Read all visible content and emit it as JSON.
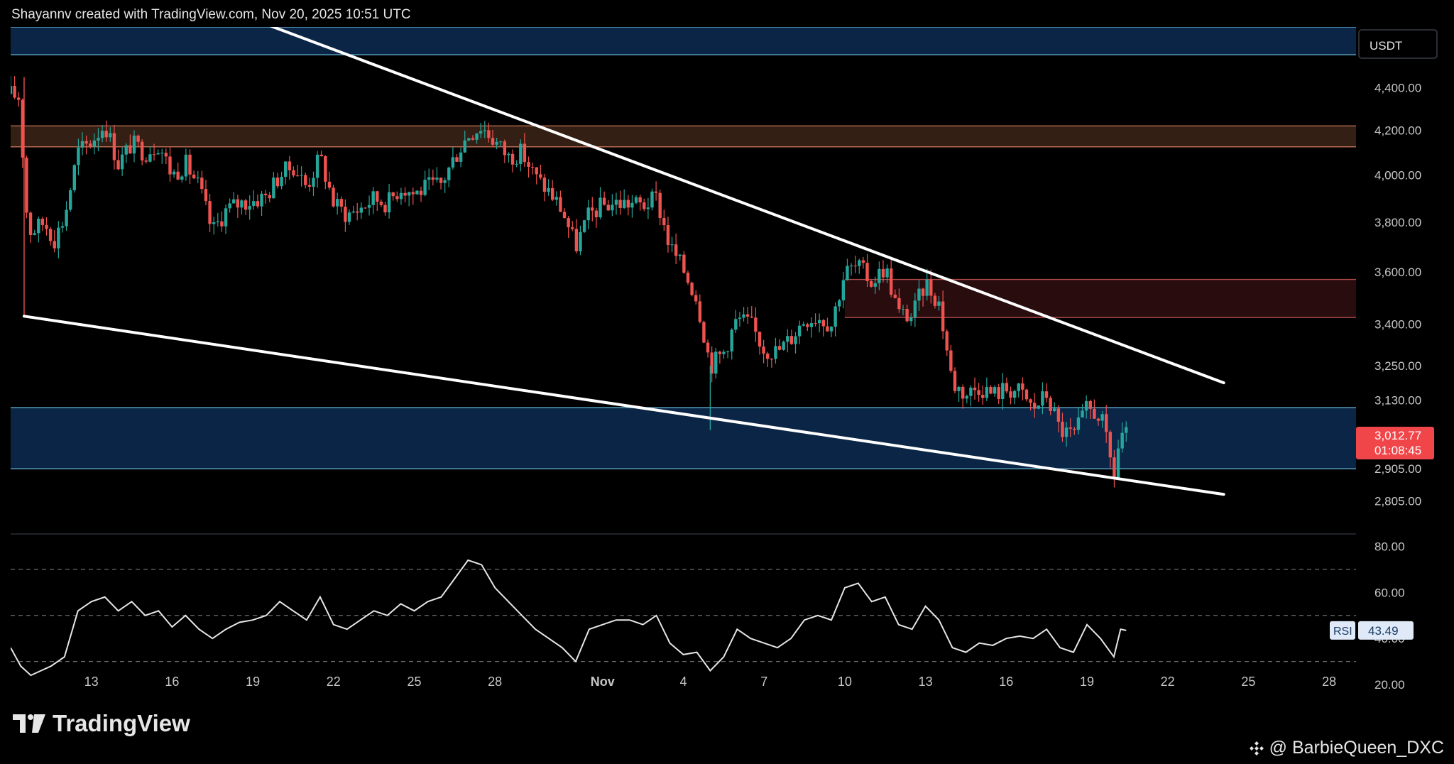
{
  "header": {
    "attribution": "Shayannv created with TradingView.com, Nov 20, 2025 10:51 UTC"
  },
  "brand": {
    "name": "TradingView"
  },
  "watermark": {
    "text": "@ BarbieQueen_DXC"
  },
  "colors": {
    "background": "#000000",
    "up": "#26a69a",
    "down": "#ef5350",
    "blue_zone": "#0d2b52",
    "blue_zone_line": "#5fa6c8",
    "orange_zone": "#3a2216",
    "red_zone": "#2c0d10",
    "trendline": "#ffffff",
    "rsi_line": "#e6e6e6"
  },
  "chart_data": {
    "type": "candlestick",
    "currency": "USDT",
    "y_scale": "log",
    "ylim": [
      2710,
      4700
    ],
    "y_ticks": [
      "4,400.00",
      "4,200.00",
      "4,000.00",
      "3,800.00",
      "3,600.00",
      "3,400.00",
      "3,250.00",
      "3,130.00",
      "2,905.00",
      "2,805.00"
    ],
    "y_tick_values": [
      4400,
      4200,
      4000,
      3800,
      3600,
      3400,
      3250,
      3130,
      2905,
      2805
    ],
    "x_range": [
      "2025-10-10",
      "2025-11-29"
    ],
    "x_ticks": [
      {
        "label": "13",
        "date": "2025-10-13"
      },
      {
        "label": "16",
        "date": "2025-10-16"
      },
      {
        "label": "19",
        "date": "2025-10-19"
      },
      {
        "label": "22",
        "date": "2025-10-22"
      },
      {
        "label": "25",
        "date": "2025-10-25"
      },
      {
        "label": "28",
        "date": "2025-10-28"
      },
      {
        "label": "Nov",
        "date": "2025-11-01"
      },
      {
        "label": "4",
        "date": "2025-11-04"
      },
      {
        "label": "7",
        "date": "2025-11-07"
      },
      {
        "label": "10",
        "date": "2025-11-10"
      },
      {
        "label": "13",
        "date": "2025-11-13"
      },
      {
        "label": "16",
        "date": "2025-11-16"
      },
      {
        "label": "19",
        "date": "2025-11-19"
      },
      {
        "label": "22",
        "date": "2025-11-22"
      },
      {
        "label": "25",
        "date": "2025-11-25"
      },
      {
        "label": "28",
        "date": "2025-11-28"
      }
    ],
    "last_price": "3,012.77",
    "countdown": "01:08:45",
    "zones": [
      {
        "name": "top-blue-zone",
        "color": "blue",
        "low": 4560,
        "high": 4720
      },
      {
        "name": "supply-zone",
        "color": "orange",
        "low": 4125,
        "high": 4220
      },
      {
        "name": "resistance-zone",
        "color": "red",
        "low": 3425,
        "high": 3570
      },
      {
        "name": "support-zone",
        "color": "blue",
        "low": 2905,
        "high": 3105
      }
    ],
    "trendlines": [
      {
        "name": "upper-trendline",
        "from": {
          "date": "2025-10-19T09:00",
          "price": 4720
        },
        "to": {
          "date": "2025-11-24T02:00",
          "price": 3190
        }
      },
      {
        "name": "lower-trendline",
        "from": {
          "date": "2025-10-10T12:00",
          "price": 3430
        },
        "to": {
          "date": "2025-11-24T02:00",
          "price": 2825
        }
      }
    ],
    "price_path": [
      [
        "2025-10-10T00:00",
        4370
      ],
      [
        "2025-10-10T09:00",
        4350
      ],
      [
        "2025-10-10T12:00",
        3900
      ],
      [
        "2025-10-10T18:00",
        3760
      ],
      [
        "2025-10-11T06:00",
        3800
      ],
      [
        "2025-10-11T15:00",
        3730
      ],
      [
        "2025-10-12T00:00",
        3820
      ],
      [
        "2025-10-12T12:00",
        4100
      ],
      [
        "2025-10-13T00:00",
        4150
      ],
      [
        "2025-10-13T12:00",
        4230
      ],
      [
        "2025-10-14T00:00",
        4050
      ],
      [
        "2025-10-14T12:00",
        4140
      ],
      [
        "2025-10-15T00:00",
        4100
      ],
      [
        "2025-10-15T12:00",
        4140
      ],
      [
        "2025-10-16T00:00",
        4000
      ],
      [
        "2025-10-16T12:00",
        4050
      ],
      [
        "2025-10-17T00:00",
        3950
      ],
      [
        "2025-10-17T12:00",
        3760
      ],
      [
        "2025-10-18T00:00",
        3850
      ],
      [
        "2025-10-18T12:00",
        3880
      ],
      [
        "2025-10-19T00:00",
        3890
      ],
      [
        "2025-10-19T12:00",
        3910
      ],
      [
        "2025-10-20T00:00",
        4000
      ],
      [
        "2025-10-20T12:00",
        4040
      ],
      [
        "2025-10-21T00:00",
        3950
      ],
      [
        "2025-10-21T12:00",
        4080
      ],
      [
        "2025-10-22T00:00",
        3880
      ],
      [
        "2025-10-22T12:00",
        3830
      ],
      [
        "2025-10-23T00:00",
        3860
      ],
      [
        "2025-10-23T12:00",
        3900
      ],
      [
        "2025-10-24T00:00",
        3880
      ],
      [
        "2025-10-24T12:00",
        3950
      ],
      [
        "2025-10-25T00:00",
        3920
      ],
      [
        "2025-10-25T12:00",
        3950
      ],
      [
        "2025-10-26T00:00",
        3960
      ],
      [
        "2025-10-26T12:00",
        4080
      ],
      [
        "2025-10-27T00:00",
        4180
      ],
      [
        "2025-10-27T12:00",
        4220
      ],
      [
        "2025-10-28T00:00",
        4150
      ],
      [
        "2025-10-28T12:00",
        4080
      ],
      [
        "2025-10-29T00:00",
        4100
      ],
      [
        "2025-10-29T12:00",
        3990
      ],
      [
        "2025-10-30T00:00",
        3930
      ],
      [
        "2025-10-30T12:00",
        3850
      ],
      [
        "2025-10-31T00:00",
        3700
      ],
      [
        "2025-10-31T12:00",
        3830
      ],
      [
        "2025-11-01T00:00",
        3870
      ],
      [
        "2025-11-01T12:00",
        3880
      ],
      [
        "2025-11-02T00:00",
        3880
      ],
      [
        "2025-11-02T12:00",
        3870
      ],
      [
        "2025-11-03T00:00",
        3900
      ],
      [
        "2025-11-03T12:00",
        3700
      ],
      [
        "2025-11-04T00:00",
        3610
      ],
      [
        "2025-11-04T12:00",
        3500
      ],
      [
        "2025-11-05T00:00",
        3250
      ],
      [
        "2025-11-05T12:00",
        3300
      ],
      [
        "2025-11-06T00:00",
        3420
      ],
      [
        "2025-11-06T12:00",
        3400
      ],
      [
        "2025-11-07T00:00",
        3310
      ],
      [
        "2025-11-07T12:00",
        3300
      ],
      [
        "2025-11-08T00:00",
        3350
      ],
      [
        "2025-11-08T12:00",
        3420
      ],
      [
        "2025-11-09T00:00",
        3430
      ],
      [
        "2025-11-09T12:00",
        3400
      ],
      [
        "2025-11-10T00:00",
        3600
      ],
      [
        "2025-11-10T12:00",
        3620
      ],
      [
        "2025-11-11T00:00",
        3560
      ],
      [
        "2025-11-11T12:00",
        3620
      ],
      [
        "2025-11-12T00:00",
        3440
      ],
      [
        "2025-11-12T12:00",
        3430
      ],
      [
        "2025-11-13T00:00",
        3560
      ],
      [
        "2025-11-13T12:00",
        3480
      ],
      [
        "2025-11-14T00:00",
        3190
      ],
      [
        "2025-11-14T12:00",
        3150
      ],
      [
        "2025-11-15T00:00",
        3180
      ],
      [
        "2025-11-15T12:00",
        3150
      ],
      [
        "2025-11-16T00:00",
        3170
      ],
      [
        "2025-11-16T12:00",
        3160
      ],
      [
        "2025-11-17T00:00",
        3100
      ],
      [
        "2025-11-17T12:00",
        3150
      ],
      [
        "2025-11-18T00:00",
        3030
      ],
      [
        "2025-11-18T12:00",
        3010
      ],
      [
        "2025-11-19T00:00",
        3100
      ],
      [
        "2025-11-19T12:00",
        3080
      ],
      [
        "2025-11-20T00:00",
        2880
      ],
      [
        "2025-11-20T06:00",
        3020
      ],
      [
        "2025-11-20T11:00",
        3013
      ]
    ],
    "rsi": {
      "label": "RSI",
      "value": "43.49",
      "y_ticks": [
        "80.00",
        "60.00",
        "40.00",
        "20.00"
      ],
      "y_tick_values": [
        80,
        60,
        40,
        20
      ],
      "ylim": [
        12,
        86
      ],
      "bands": [
        30,
        50,
        70
      ],
      "series": [
        [
          "2025-10-10T00:00",
          36
        ],
        [
          "2025-10-10T09:00",
          28
        ],
        [
          "2025-10-10T18:00",
          24
        ],
        [
          "2025-10-11T12:00",
          28
        ],
        [
          "2025-10-12T00:00",
          32
        ],
        [
          "2025-10-12T12:00",
          52
        ],
        [
          "2025-10-13T00:00",
          56
        ],
        [
          "2025-10-13T12:00",
          58
        ],
        [
          "2025-10-14T00:00",
          52
        ],
        [
          "2025-10-14T12:00",
          56
        ],
        [
          "2025-10-15T00:00",
          50
        ],
        [
          "2025-10-15T12:00",
          52
        ],
        [
          "2025-10-16T00:00",
          45
        ],
        [
          "2025-10-16T12:00",
          50
        ],
        [
          "2025-10-17T00:00",
          44
        ],
        [
          "2025-10-17T12:00",
          40
        ],
        [
          "2025-10-18T00:00",
          44
        ],
        [
          "2025-10-18T12:00",
          47
        ],
        [
          "2025-10-19T00:00",
          48
        ],
        [
          "2025-10-19T12:00",
          50
        ],
        [
          "2025-10-20T00:00",
          56
        ],
        [
          "2025-10-20T12:00",
          52
        ],
        [
          "2025-10-21T00:00",
          48
        ],
        [
          "2025-10-21T12:00",
          58
        ],
        [
          "2025-10-22T00:00",
          46
        ],
        [
          "2025-10-22T12:00",
          44
        ],
        [
          "2025-10-23T00:00",
          48
        ],
        [
          "2025-10-23T12:00",
          52
        ],
        [
          "2025-10-24T00:00",
          50
        ],
        [
          "2025-10-24T12:00",
          55
        ],
        [
          "2025-10-25T00:00",
          52
        ],
        [
          "2025-10-25T12:00",
          56
        ],
        [
          "2025-10-26T00:00",
          58
        ],
        [
          "2025-10-26T12:00",
          66
        ],
        [
          "2025-10-27T00:00",
          74
        ],
        [
          "2025-10-27T12:00",
          72
        ],
        [
          "2025-10-28T00:00",
          62
        ],
        [
          "2025-10-28T12:00",
          56
        ],
        [
          "2025-10-29T00:00",
          50
        ],
        [
          "2025-10-29T12:00",
          44
        ],
        [
          "2025-10-30T00:00",
          40
        ],
        [
          "2025-10-30T12:00",
          36
        ],
        [
          "2025-10-31T00:00",
          30
        ],
        [
          "2025-10-31T12:00",
          44
        ],
        [
          "2025-11-01T00:00",
          46
        ],
        [
          "2025-11-01T12:00",
          48
        ],
        [
          "2025-11-02T00:00",
          48
        ],
        [
          "2025-11-02T12:00",
          46
        ],
        [
          "2025-11-03T00:00",
          50
        ],
        [
          "2025-11-03T12:00",
          38
        ],
        [
          "2025-11-04T00:00",
          33
        ],
        [
          "2025-11-04T12:00",
          34
        ],
        [
          "2025-11-05T00:00",
          26
        ],
        [
          "2025-11-05T12:00",
          32
        ],
        [
          "2025-11-06T00:00",
          44
        ],
        [
          "2025-11-06T12:00",
          40
        ],
        [
          "2025-11-07T00:00",
          38
        ],
        [
          "2025-11-07T12:00",
          36
        ],
        [
          "2025-11-08T00:00",
          40
        ],
        [
          "2025-11-08T12:00",
          48
        ],
        [
          "2025-11-09T00:00",
          50
        ],
        [
          "2025-11-09T12:00",
          48
        ],
        [
          "2025-11-10T00:00",
          62
        ],
        [
          "2025-11-10T12:00",
          64
        ],
        [
          "2025-11-11T00:00",
          56
        ],
        [
          "2025-11-11T12:00",
          58
        ],
        [
          "2025-11-12T00:00",
          46
        ],
        [
          "2025-11-12T12:00",
          44
        ],
        [
          "2025-11-13T00:00",
          54
        ],
        [
          "2025-11-13T12:00",
          48
        ],
        [
          "2025-11-14T00:00",
          36
        ],
        [
          "2025-11-14T12:00",
          34
        ],
        [
          "2025-11-15T00:00",
          38
        ],
        [
          "2025-11-15T12:00",
          37
        ],
        [
          "2025-11-16T00:00",
          40
        ],
        [
          "2025-11-16T12:00",
          41
        ],
        [
          "2025-11-17T00:00",
          40
        ],
        [
          "2025-11-17T12:00",
          44
        ],
        [
          "2025-11-18T00:00",
          36
        ],
        [
          "2025-11-18T12:00",
          34
        ],
        [
          "2025-11-19T00:00",
          46
        ],
        [
          "2025-11-19T12:00",
          40
        ],
        [
          "2025-11-20T00:00",
          32
        ],
        [
          "2025-11-20T06:00",
          44
        ],
        [
          "2025-11-20T11:00",
          43.49
        ]
      ]
    }
  }
}
